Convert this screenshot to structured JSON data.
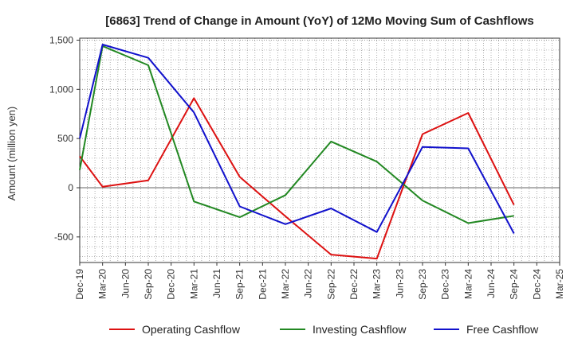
{
  "chart_data": {
    "type": "line",
    "title": "[6863]  Trend of Change in Amount (YoY) of 12Mo Moving Sum of Cashflows",
    "ylabel": "Amount (million yen)",
    "xlabel": "",
    "ylim": [
      -760,
      1520
    ],
    "yticks": [
      -500,
      0,
      500,
      1000,
      1500
    ],
    "ytick_labels": [
      "-500",
      "0",
      "500",
      "1,000",
      "1,500"
    ],
    "grid": true,
    "legend_position": "bottom",
    "categories": [
      "Dec-19",
      "Mar-20",
      "Jun-20",
      "Sep-20",
      "Dec-20",
      "Mar-21",
      "Jun-21",
      "Sep-21",
      "Dec-21",
      "Mar-22",
      "Jun-22",
      "Sep-22",
      "Dec-22",
      "Mar-23",
      "Jun-23",
      "Sep-23",
      "Dec-23",
      "Mar-24",
      "Jun-24",
      "Sep-24",
      "Dec-24",
      "Mar-25"
    ],
    "series": [
      {
        "name": "Operating Cashflow",
        "color": "#dd1111",
        "values": [
          320,
          10,
          null,
          75,
          null,
          910,
          null,
          110,
          null,
          -290,
          null,
          -680,
          null,
          -720,
          null,
          545,
          null,
          760,
          null,
          -175,
          null,
          null
        ]
      },
      {
        "name": "Investing Cashflow",
        "color": "#228822",
        "values": [
          180,
          1440,
          null,
          1245,
          null,
          -140,
          null,
          -300,
          null,
          -75,
          null,
          470,
          null,
          265,
          null,
          -130,
          null,
          -360,
          null,
          -285,
          null,
          null
        ]
      },
      {
        "name": "Free Cashflow",
        "color": "#1111cc",
        "values": [
          500,
          1455,
          null,
          1320,
          null,
          765,
          null,
          -190,
          null,
          -370,
          null,
          -210,
          null,
          -450,
          null,
          415,
          null,
          400,
          null,
          -465,
          null,
          null
        ]
      }
    ]
  }
}
